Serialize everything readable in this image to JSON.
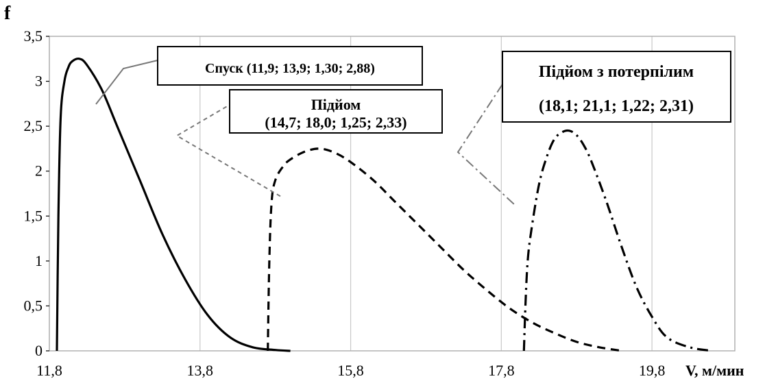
{
  "chart_data": {
    "type": "line",
    "title": "",
    "ylabel": "f",
    "xlabel": "V, м/мин",
    "xlim": [
      11.8,
      20.9
    ],
    "ylim": [
      0,
      3.5
    ],
    "x_tick_labels": [
      "11,8",
      "13,8",
      "15,8",
      "17,8",
      "19,8"
    ],
    "x_tick_values": [
      11.8,
      13.8,
      15.8,
      17.8,
      19.8
    ],
    "y_tick_labels": [
      "0",
      "0,5",
      "1",
      "1,5",
      "2",
      "2,5",
      "3",
      "3,5"
    ],
    "y_tick_values": [
      0,
      0.5,
      1,
      1.5,
      2,
      2.5,
      3,
      3.5
    ],
    "grid": "vertical",
    "series": [
      {
        "style": "solid",
        "color": "#000000",
        "x": [
          11.9,
          11.92,
          11.95,
          12.0,
          12.05,
          12.1,
          12.2,
          12.3,
          12.5,
          12.7,
          13.0,
          13.3,
          13.6,
          13.9,
          14.2,
          14.5,
          14.8,
          15.0
        ],
        "y": [
          0,
          1.5,
          2.6,
          3.0,
          3.15,
          3.22,
          3.25,
          3.18,
          2.9,
          2.5,
          1.9,
          1.3,
          0.8,
          0.4,
          0.15,
          0.04,
          0.01,
          0
        ]
      },
      {
        "style": "dashed",
        "color": "#000000",
        "x": [
          14.7,
          14.72,
          14.75,
          14.8,
          14.9,
          15.0,
          15.2,
          15.4,
          15.6,
          15.8,
          16.1,
          16.4,
          16.7,
          17.0,
          17.3,
          17.6,
          17.9,
          18.2,
          18.5,
          18.8,
          19.1,
          19.4
        ],
        "y": [
          0,
          1.0,
          1.65,
          1.9,
          2.05,
          2.13,
          2.22,
          2.25,
          2.2,
          2.1,
          1.9,
          1.65,
          1.4,
          1.15,
          0.9,
          0.68,
          0.48,
          0.32,
          0.2,
          0.1,
          0.04,
          0
        ]
      },
      {
        "style": "dash-dot",
        "color": "#000000",
        "x": [
          18.1,
          18.12,
          18.15,
          18.2,
          18.3,
          18.4,
          18.5,
          18.6,
          18.7,
          18.8,
          18.9,
          19.0,
          19.2,
          19.4,
          19.6,
          19.8,
          20.0,
          20.3,
          20.6
        ],
        "y": [
          0,
          0.5,
          1.0,
          1.35,
          1.85,
          2.15,
          2.35,
          2.43,
          2.45,
          2.4,
          2.28,
          2.1,
          1.65,
          1.15,
          0.7,
          0.38,
          0.15,
          0.04,
          0
        ]
      }
    ],
    "annotations": [
      {
        "lines": [
          "Спуск (11,9; 13,9; 1,30; 2,88)"
        ]
      },
      {
        "lines": [
          "Підйом",
          "(14,7; 18,0; 1,25; 2,33)"
        ]
      },
      {
        "lines": [
          "Підйом з потерпілим",
          "(18,1; 21,1; 1,22; 2,31)"
        ]
      }
    ]
  }
}
